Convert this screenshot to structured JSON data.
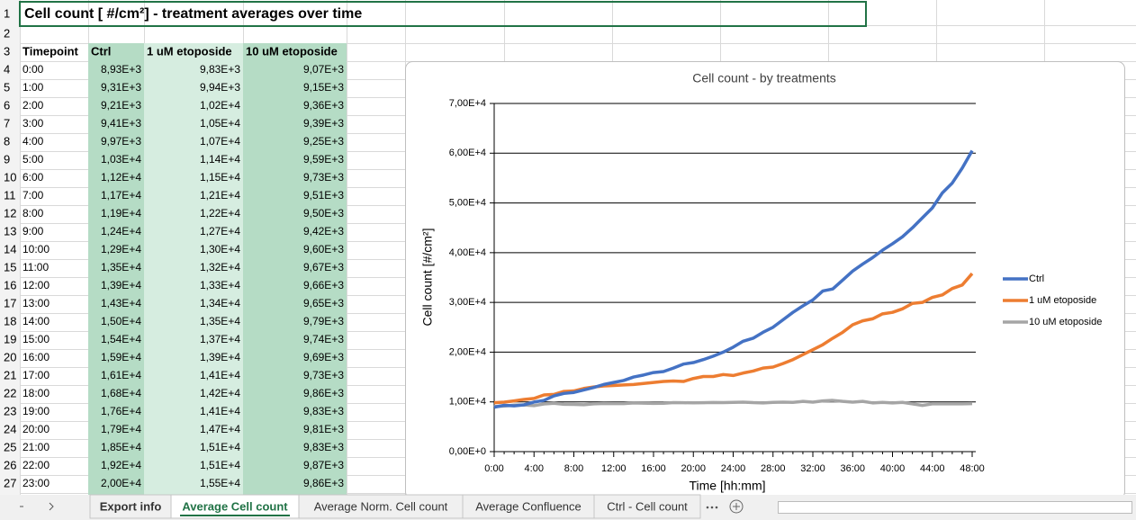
{
  "sheet": {
    "title": "Cell count [ #/cm²] - treatment averages over time",
    "row_numbers": [
      1,
      2,
      3,
      4,
      5,
      6,
      7,
      8,
      9,
      10,
      11,
      12,
      13,
      14,
      15,
      16,
      17,
      18,
      19,
      20,
      21,
      22,
      23,
      24,
      25,
      26,
      27
    ],
    "header": [
      "Timepoint",
      "Ctrl",
      "1 uM etoposide",
      "10 uM etoposide"
    ],
    "rows": [
      [
        "0:00",
        "8,93E+3",
        "9,83E+3",
        "9,07E+3"
      ],
      [
        "1:00",
        "9,31E+3",
        "9,94E+3",
        "9,15E+3"
      ],
      [
        "2:00",
        "9,21E+3",
        "1,02E+4",
        "9,36E+3"
      ],
      [
        "3:00",
        "9,41E+3",
        "1,05E+4",
        "9,39E+3"
      ],
      [
        "4:00",
        "9,97E+3",
        "1,07E+4",
        "9,25E+3"
      ],
      [
        "5:00",
        "1,03E+4",
        "1,14E+4",
        "9,59E+3"
      ],
      [
        "6:00",
        "1,12E+4",
        "1,15E+4",
        "9,73E+3"
      ],
      [
        "7:00",
        "1,17E+4",
        "1,21E+4",
        "9,51E+3"
      ],
      [
        "8:00",
        "1,19E+4",
        "1,22E+4",
        "9,50E+3"
      ],
      [
        "9:00",
        "1,24E+4",
        "1,27E+4",
        "9,42E+3"
      ],
      [
        "10:00",
        "1,29E+4",
        "1,30E+4",
        "9,60E+3"
      ],
      [
        "11:00",
        "1,35E+4",
        "1,32E+4",
        "9,67E+3"
      ],
      [
        "12:00",
        "1,39E+4",
        "1,33E+4",
        "9,66E+3"
      ],
      [
        "13:00",
        "1,43E+4",
        "1,34E+4",
        "9,65E+3"
      ],
      [
        "14:00",
        "1,50E+4",
        "1,35E+4",
        "9,79E+3"
      ],
      [
        "15:00",
        "1,54E+4",
        "1,37E+4",
        "9,74E+3"
      ],
      [
        "16:00",
        "1,59E+4",
        "1,39E+4",
        "9,69E+3"
      ],
      [
        "17:00",
        "1,61E+4",
        "1,41E+4",
        "9,73E+3"
      ],
      [
        "18:00",
        "1,68E+4",
        "1,42E+4",
        "9,86E+3"
      ],
      [
        "19:00",
        "1,76E+4",
        "1,41E+4",
        "9,83E+3"
      ],
      [
        "20:00",
        "1,79E+4",
        "1,47E+4",
        "9,81E+3"
      ],
      [
        "21:00",
        "1,85E+4",
        "1,51E+4",
        "9,83E+3"
      ],
      [
        "22:00",
        "1,92E+4",
        "1,51E+4",
        "9,87E+3"
      ],
      [
        "23:00",
        "2,00E+4",
        "1,55E+4",
        "9,86E+3"
      ]
    ]
  },
  "chart_data": {
    "type": "line",
    "title": "Cell count - by treatments",
    "x_label": "Time [hh:mm]",
    "y_label": "Cell count [#/cm²]",
    "categories": [
      "0:00",
      null,
      null,
      null,
      "4:00",
      null,
      null,
      null,
      "8:00",
      null,
      null,
      null,
      "12:00",
      null,
      null,
      null,
      "16:00",
      null,
      null,
      null,
      "20:00",
      null,
      null,
      null,
      "24:00",
      null,
      null,
      null,
      "28:00",
      null,
      null,
      null,
      "32:00",
      null,
      null,
      null,
      "36:00",
      null,
      null,
      null,
      "40:00",
      null,
      null,
      null,
      "44:00",
      null,
      null,
      null,
      "48:00"
    ],
    "ylim": [
      0,
      70000
    ],
    "yticks": [
      {
        "value": 0,
        "label": "0,00E+0"
      },
      {
        "value": 10000,
        "label": "1,00E+4"
      },
      {
        "value": 20000,
        "label": "2,00E+4"
      },
      {
        "value": 30000,
        "label": "3,00E+4"
      },
      {
        "value": 40000,
        "label": "4,00E+4"
      },
      {
        "value": 50000,
        "label": "5,00E+4"
      },
      {
        "value": 60000,
        "label": "6,00E+4"
      },
      {
        "value": 70000,
        "label": "7,00E+4"
      }
    ],
    "grid": true,
    "legend": "right",
    "series": [
      {
        "name": "Ctrl",
        "color": "#4472c4",
        "values": [
          8930,
          9310,
          9210,
          9410,
          9970,
          10300,
          11200,
          11700,
          11900,
          12400,
          12900,
          13500,
          13900,
          14300,
          15000,
          15400,
          15900,
          16100,
          16800,
          17600,
          17900,
          18500,
          19200,
          20000,
          21000,
          22200,
          22800,
          24000,
          25000,
          26500,
          28000,
          29300,
          30500,
          32300,
          32700,
          34500,
          36300,
          37700,
          39000,
          40500,
          41800,
          43200,
          45000,
          47000,
          49000,
          52000,
          54000,
          57000,
          60500
        ]
      },
      {
        "name": "1 uM etoposide",
        "color": "#ed7d31",
        "values": [
          9830,
          9940,
          10200,
          10500,
          10700,
          11400,
          11500,
          12100,
          12200,
          12700,
          13000,
          13200,
          13300,
          13400,
          13500,
          13700,
          13900,
          14100,
          14200,
          14100,
          14700,
          15100,
          15100,
          15500,
          15300,
          15800,
          16200,
          16800,
          17000,
          17700,
          18500,
          19500,
          20500,
          21500,
          22800,
          24000,
          25500,
          26300,
          26700,
          27700,
          28000,
          28700,
          29800,
          30000,
          31000,
          31500,
          32800,
          33500,
          35800
        ]
      },
      {
        "name": "10 uM etoposide",
        "color": "#a5a5a5",
        "values": [
          9070,
          9150,
          9360,
          9390,
          9250,
          9590,
          9730,
          9510,
          9500,
          9420,
          9600,
          9670,
          9660,
          9650,
          9790,
          9740,
          9690,
          9730,
          9860,
          9830,
          9810,
          9830,
          9870,
          9860,
          9900,
          9950,
          9850,
          9800,
          9900,
          9950,
          9900,
          10100,
          9950,
          10200,
          10300,
          10100,
          9950,
          10100,
          9800,
          9900,
          9800,
          9900,
          9600,
          9300,
          9600,
          9600,
          9600,
          9600,
          9650
        ]
      }
    ]
  },
  "tabs": [
    "Export info",
    "Average Cell count",
    "Average Norm. Cell count",
    "Average Confluence",
    "Ctrl - Cell count"
  ]
}
